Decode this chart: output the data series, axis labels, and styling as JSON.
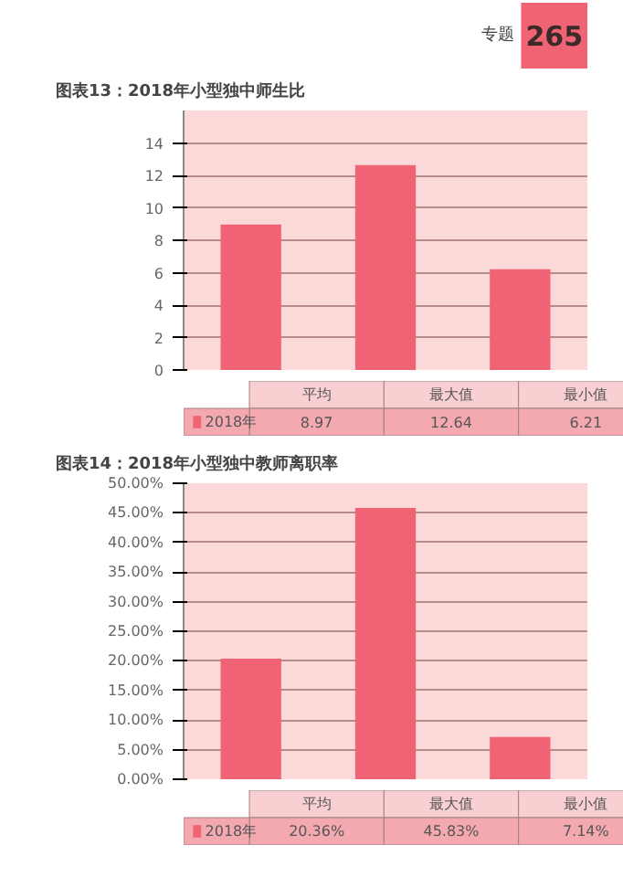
{
  "chart_data": [
    {
      "type": "bar",
      "title": "图表13：2018年小型独中师生比",
      "annotations": [
        "专题",
        "265"
      ],
      "categories": [
        "平均",
        "最大值",
        "最小值"
      ],
      "series": [
        {
          "name": "2018年",
          "color": "#f06374",
          "values": [
            8.97,
            12.64,
            6.21
          ]
        }
      ],
      "ylim": [
        0,
        16
      ],
      "yticks": [
        0,
        2,
        4,
        6,
        8,
        10,
        12,
        14
      ],
      "grid": "y",
      "legend": "bottom",
      "data_labels": true
    },
    {
      "type": "bar",
      "title": "图表14：2018年小型独中教师离职率",
      "categories": [
        "平均",
        "最大值",
        "最小值"
      ],
      "series": [
        {
          "name": "2018年",
          "color": "#f06374",
          "values": [
            20.36,
            45.83,
            7.14
          ],
          "value_labels": [
            "20.36%",
            "45.83%",
            "7.14%"
          ]
        }
      ],
      "ylim": [
        0,
        50
      ],
      "yticks": [
        {
          "value": 0,
          "label": "0.00%"
        },
        {
          "value": 5,
          "label": "5.00%"
        },
        {
          "value": 10,
          "label": "10.00%"
        },
        {
          "value": 15,
          "label": "15.00%"
        },
        {
          "value": 20,
          "label": "20.00%"
        },
        {
          "value": 25,
          "label": "25.00%"
        },
        {
          "value": 30,
          "label": "30.00%"
        },
        {
          "value": 35,
          "label": "35.00%"
        },
        {
          "value": 40,
          "label": "40.00%"
        },
        {
          "value": 45,
          "label": "45.00%"
        },
        {
          "value": 50,
          "label": "50.00%"
        }
      ],
      "grid": "y",
      "legend": "bottom"
    }
  ]
}
